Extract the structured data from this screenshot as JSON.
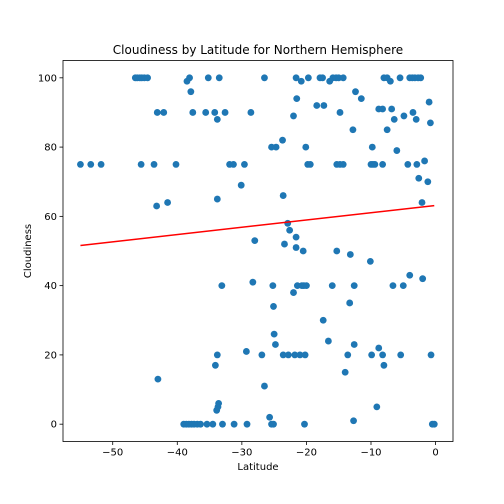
{
  "chart_data": {
    "type": "scatter",
    "title": "Cloudiness by Latitude for Northern Hemisphere",
    "xlabel": "Latitude",
    "ylabel": "Cloudiness",
    "xlim": [
      -57.7,
      2.7
    ],
    "ylim": [
      -5,
      105
    ],
    "xticks": [
      -50,
      -40,
      -30,
      -20,
      -10,
      0
    ],
    "yticks": [
      0,
      20,
      40,
      60,
      80,
      100
    ],
    "grid": false,
    "colors": {
      "points": "#1f77b4",
      "regression": "#ff0000"
    },
    "regression_line": {
      "x": [
        -55,
        -0.2
      ],
      "y": [
        51.6,
        63.1
      ]
    },
    "points": [
      [
        -46.5,
        100
      ],
      [
        -46.2,
        100
      ],
      [
        -45.8,
        100
      ],
      [
        -45.5,
        100
      ],
      [
        -45.1,
        100
      ],
      [
        -44.6,
        100
      ],
      [
        -38.5,
        99
      ],
      [
        -38.1,
        100
      ],
      [
        -37.9,
        96
      ],
      [
        -37.6,
        90
      ],
      [
        -35.2,
        100
      ],
      [
        -33.5,
        100
      ],
      [
        -26.5,
        100
      ],
      [
        -21.6,
        100
      ],
      [
        -20.8,
        99
      ],
      [
        -19.7,
        100
      ],
      [
        -17.9,
        100
      ],
      [
        -17.5,
        100
      ],
      [
        -16.4,
        99
      ],
      [
        -15.9,
        100
      ],
      [
        -15.4,
        100
      ],
      [
        -15.0,
        100
      ],
      [
        -14.3,
        100
      ],
      [
        -12.4,
        96
      ],
      [
        -11.5,
        94
      ],
      [
        -8.0,
        100
      ],
      [
        -7.5,
        100
      ],
      [
        -7.0,
        99
      ],
      [
        -5.5,
        100
      ],
      [
        -4.0,
        100
      ],
      [
        -3.6,
        100
      ],
      [
        -3.2,
        100
      ],
      [
        -2.7,
        100
      ],
      [
        -2.3,
        100
      ],
      [
        -1.0,
        93
      ],
      [
        -43.1,
        90
      ],
      [
        -42.1,
        90
      ],
      [
        -35.6,
        90
      ],
      [
        -34.2,
        90
      ],
      [
        -33.8,
        88
      ],
      [
        -32.6,
        90
      ],
      [
        -28.6,
        90
      ],
      [
        -22.0,
        89
      ],
      [
        -21.5,
        94
      ],
      [
        -18.4,
        92
      ],
      [
        -17.3,
        92
      ],
      [
        -14.8,
        90
      ],
      [
        -12.8,
        85
      ],
      [
        -9.8,
        80
      ],
      [
        -8.8,
        91
      ],
      [
        -8.2,
        91
      ],
      [
        -7.5,
        85
      ],
      [
        -6.8,
        91
      ],
      [
        -6.4,
        88
      ],
      [
        -6.0,
        79
      ],
      [
        -4.9,
        89
      ],
      [
        -4.3,
        75
      ],
      [
        -3.5,
        90
      ],
      [
        -3.0,
        88
      ],
      [
        -0.8,
        87
      ],
      [
        -55.0,
        75
      ],
      [
        -53.4,
        75
      ],
      [
        -51.8,
        75
      ],
      [
        -45.6,
        75
      ],
      [
        -43.6,
        75
      ],
      [
        -40.2,
        75
      ],
      [
        -31.9,
        75
      ],
      [
        -31.3,
        75
      ],
      [
        -29.6,
        75
      ],
      [
        -25.4,
        80
      ],
      [
        -24.7,
        80
      ],
      [
        -23.7,
        82
      ],
      [
        -20.1,
        80
      ],
      [
        -19.8,
        75
      ],
      [
        -19.4,
        75
      ],
      [
        -15.3,
        75
      ],
      [
        -14.8,
        75
      ],
      [
        -14.3,
        75
      ],
      [
        -10.0,
        75
      ],
      [
        -9.7,
        75
      ],
      [
        -9.4,
        75
      ],
      [
        -8.2,
        75
      ],
      [
        -2.9,
        75
      ],
      [
        -1.7,
        76
      ],
      [
        -2.6,
        71
      ],
      [
        -1.2,
        70
      ],
      [
        -30.1,
        69
      ],
      [
        -23.6,
        66
      ],
      [
        -33.8,
        65
      ],
      [
        -43.2,
        63
      ],
      [
        -41.5,
        64
      ],
      [
        -2.1,
        64
      ],
      [
        -22.9,
        58
      ],
      [
        -22.6,
        56
      ],
      [
        -21.6,
        54
      ],
      [
        -23.4,
        52
      ],
      [
        -21.6,
        51
      ],
      [
        -20.5,
        50
      ],
      [
        -28.0,
        53
      ],
      [
        -15.3,
        50
      ],
      [
        -13.2,
        49
      ],
      [
        -10.1,
        47
      ],
      [
        -33.1,
        40
      ],
      [
        -28.3,
        41
      ],
      [
        -25.2,
        40
      ],
      [
        -22.0,
        38
      ],
      [
        -21.4,
        40
      ],
      [
        -20.7,
        40
      ],
      [
        -20.4,
        40
      ],
      [
        -20.0,
        40
      ],
      [
        -16.0,
        40
      ],
      [
        -12.6,
        40
      ],
      [
        -6.6,
        40
      ],
      [
        -5.0,
        40
      ],
      [
        -4.0,
        43
      ],
      [
        -2.0,
        42
      ],
      [
        -13.3,
        35
      ],
      [
        -25.1,
        34
      ],
      [
        -17.4,
        30
      ],
      [
        -25.0,
        26
      ],
      [
        -24.8,
        23
      ],
      [
        -16.6,
        24
      ],
      [
        -12.6,
        23
      ],
      [
        -33.8,
        20
      ],
      [
        -29.3,
        21
      ],
      [
        -26.9,
        20
      ],
      [
        -23.6,
        20
      ],
      [
        -22.8,
        20
      ],
      [
        -21.8,
        20
      ],
      [
        -21.0,
        20
      ],
      [
        -20.2,
        20
      ],
      [
        -13.6,
        20
      ],
      [
        -9.9,
        20
      ],
      [
        -8.8,
        22
      ],
      [
        -8.2,
        20
      ],
      [
        -8.0,
        17
      ],
      [
        -5.4,
        20
      ],
      [
        -0.7,
        20
      ],
      [
        -34.1,
        17
      ],
      [
        -14.0,
        15
      ],
      [
        -43.0,
        13
      ],
      [
        -26.5,
        11
      ],
      [
        -9.1,
        5
      ],
      [
        -12.7,
        1
      ],
      [
        -39.0,
        0
      ],
      [
        -38.6,
        0
      ],
      [
        -38.2,
        0
      ],
      [
        -37.8,
        0
      ],
      [
        -37.4,
        0
      ],
      [
        -36.9,
        0
      ],
      [
        -36.4,
        0
      ],
      [
        -35.4,
        0
      ],
      [
        -34.5,
        0
      ],
      [
        -33.9,
        4
      ],
      [
        -33.7,
        5
      ],
      [
        -33.6,
        6
      ],
      [
        -33.0,
        0
      ],
      [
        -31.2,
        0
      ],
      [
        -29.2,
        0
      ],
      [
        -25.7,
        2
      ],
      [
        -25.4,
        0
      ],
      [
        -25.1,
        0
      ],
      [
        -20.3,
        0
      ],
      [
        -0.5,
        0
      ],
      [
        -0.2,
        0
      ]
    ]
  }
}
